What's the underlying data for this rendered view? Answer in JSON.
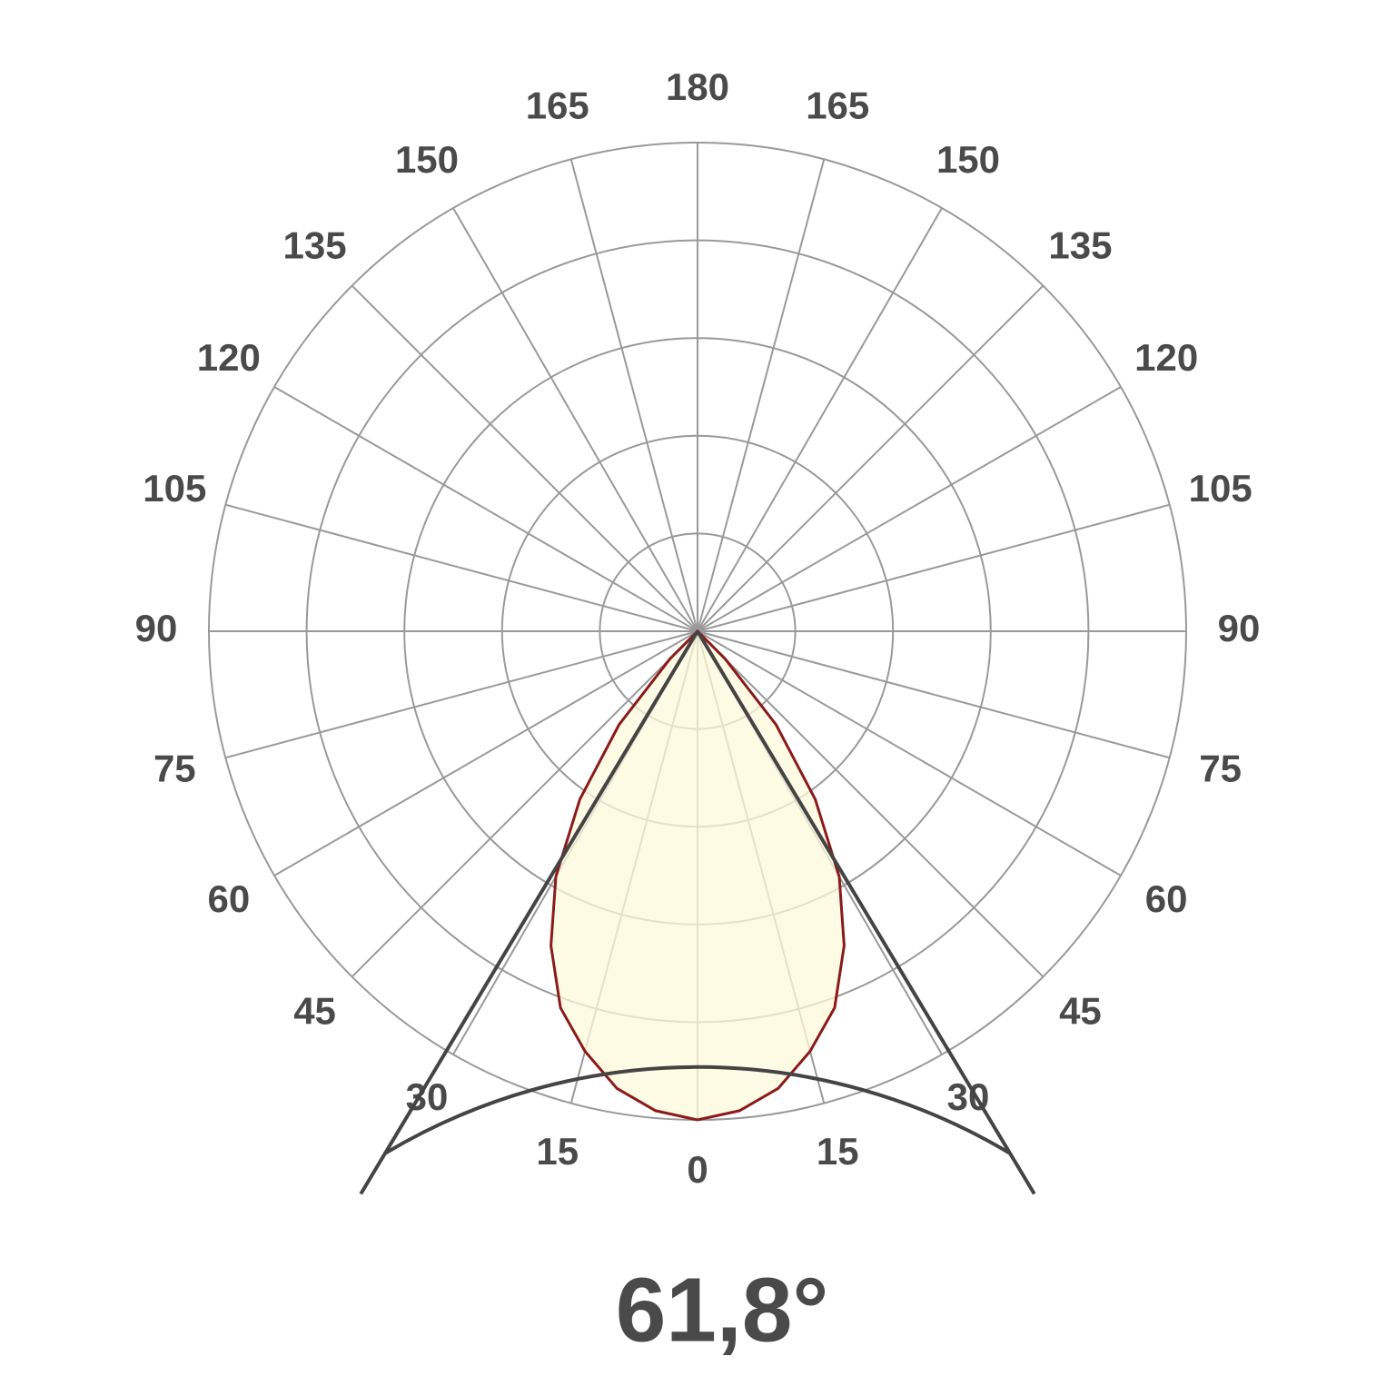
{
  "chart_data": {
    "type": "polar",
    "x": [
      -50,
      -45,
      -40,
      -35,
      -30,
      -25,
      -20,
      -15,
      -10,
      -5,
      0,
      5,
      10,
      15,
      20,
      25,
      30,
      35,
      40,
      45,
      50
    ],
    "values": [
      0,
      8,
      25,
      42,
      58,
      71,
      82,
      89,
      95,
      98.5,
      100,
      98.5,
      95,
      89,
      82,
      71,
      58,
      42,
      25,
      8,
      0
    ],
    "color": "#8b1a1a",
    "fill": "#fdf9dc",
    "rlim": [
      0,
      100
    ],
    "rticks": [
      20,
      40,
      60,
      80,
      100
    ],
    "thetaticks": [
      0,
      15,
      30,
      45,
      60,
      75,
      90,
      105,
      120,
      135,
      150,
      165,
      180
    ],
    "grid": true,
    "beam": {
      "value": 61.8,
      "label": "61,8°"
    }
  }
}
